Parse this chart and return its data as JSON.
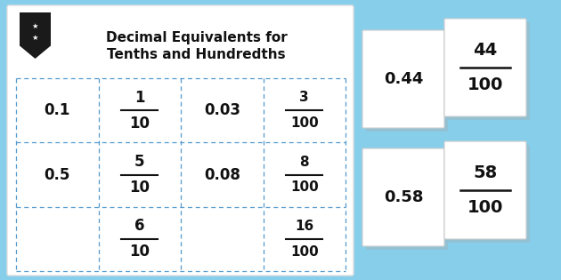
{
  "title_line1": "Decimal Equivalents for",
  "title_line2": "Tenths and Hundredths",
  "bg_color": "#87CEEB",
  "main_panel_bg": "#FFFFFF",
  "grid_color": "#5599CC",
  "text_color": "#111111",
  "grid_cells": [
    [
      "0.1",
      "frac:1:10",
      "0.03",
      "frac:3:100"
    ],
    [
      "0.5",
      "frac:5:10",
      "0.08",
      "frac:8:100"
    ],
    [
      "",
      "frac:6:10",
      "",
      "frac:16:100"
    ]
  ],
  "badge_color": "#1a1a1a",
  "cards": [
    {
      "type": "decimal",
      "text": "0.44",
      "col": 0,
      "row": 0
    },
    {
      "type": "frac",
      "num": "44",
      "den": "100",
      "col": 1,
      "row": 0
    },
    {
      "type": "decimal",
      "text": "0.58",
      "col": 0,
      "row": 1
    },
    {
      "type": "frac",
      "num": "58",
      "den": "100",
      "col": 1,
      "row": 1
    }
  ]
}
